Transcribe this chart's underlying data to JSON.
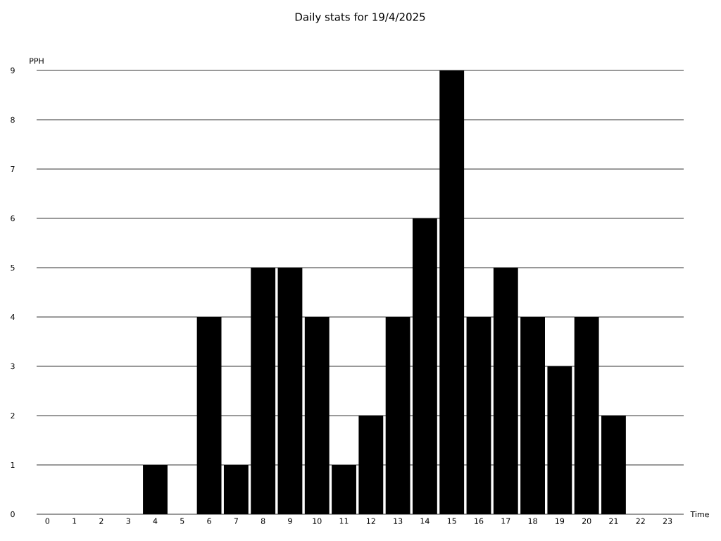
{
  "chart_data": {
    "type": "bar",
    "title": "Daily stats for 19/4/2025",
    "xlabel": "Time",
    "ylabel": "PPH",
    "categories": [
      "0",
      "1",
      "2",
      "3",
      "4",
      "5",
      "6",
      "7",
      "8",
      "9",
      "10",
      "11",
      "12",
      "13",
      "14",
      "15",
      "16",
      "17",
      "18",
      "19",
      "20",
      "21",
      "22",
      "23"
    ],
    "values": [
      0,
      0,
      0,
      0,
      1,
      0,
      4,
      1,
      5,
      5,
      4,
      1,
      2,
      4,
      6,
      9,
      4,
      5,
      4,
      3,
      4,
      2,
      0,
      0
    ],
    "color": "#000000",
    "ylim": [
      0,
      9
    ],
    "yticks": [
      0,
      1,
      2,
      3,
      4,
      5,
      6,
      7,
      8,
      9
    ],
    "grid": "y"
  }
}
